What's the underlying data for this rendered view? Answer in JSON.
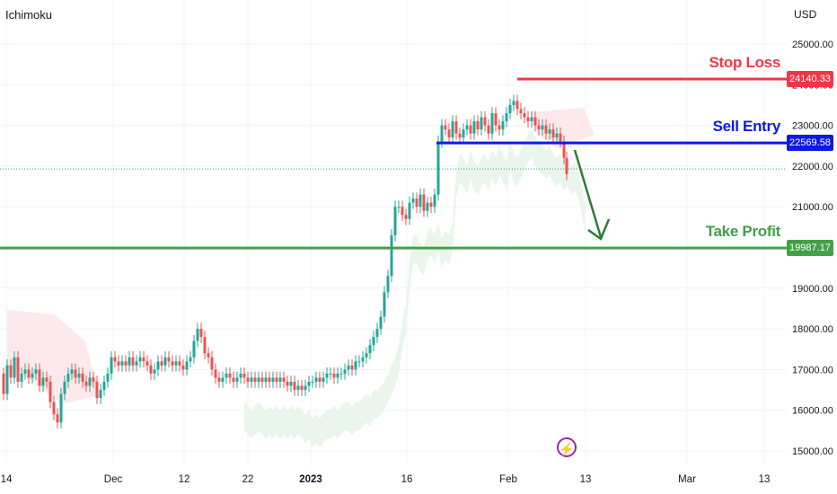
{
  "header": {
    "indicator": "Ichimoku",
    "currency": "USD"
  },
  "levels": {
    "stop_loss": {
      "label": "Stop Loss",
      "value_label": "24140.33",
      "value": 24140.33,
      "color": "#f23645"
    },
    "sell_entry": {
      "label": "Sell Entry",
      "value_label": "22569.58",
      "value": 22569.58,
      "color": "#0d19e6"
    },
    "take_profit": {
      "label": "Take Profit",
      "value_label": "19987.17",
      "value": 19987.17,
      "color": "#43a047"
    }
  },
  "chart_data": {
    "type": "candlestick",
    "y_axis_labels": [
      "25000.00",
      "24000.00",
      "23000.00",
      "22000.00",
      "21000.00",
      "20000.00",
      "19000.00",
      "18000.00",
      "17000.00",
      "16000.00",
      "15000.00"
    ],
    "x_axis_labels": [
      "14",
      "Dec",
      "12",
      "22",
      "2023",
      "16",
      "Feb",
      "13",
      "Mar",
      "13"
    ],
    "bold_x_label": "2023",
    "ylim": [
      15000,
      25000
    ],
    "current_price_line": 21930,
    "arrow": {
      "direction": "down",
      "color": "#2e7d32"
    },
    "series": [
      {
        "name": "",
        "close_path": [
          [
            0,
            16900
          ],
          [
            4,
            16400
          ],
          [
            8,
            17100
          ],
          [
            12,
            16800
          ],
          [
            16,
            17300
          ],
          [
            20,
            16700
          ],
          [
            24,
            16900
          ],
          [
            28,
            17000
          ],
          [
            32,
            16800
          ],
          [
            36,
            16900
          ],
          [
            40,
            17000
          ],
          [
            44,
            16600
          ],
          [
            48,
            16800
          ],
          [
            52,
            16700
          ],
          [
            56,
            16200
          ],
          [
            60,
            15900
          ],
          [
            64,
            15700
          ],
          [
            68,
            16400
          ],
          [
            72,
            16700
          ],
          [
            76,
            16900
          ],
          [
            80,
            17000
          ],
          [
            84,
            16800
          ],
          [
            88,
            16900
          ],
          [
            92,
            16700
          ],
          [
            96,
            16600
          ],
          [
            100,
            16800
          ],
          [
            104,
            16700
          ],
          [
            108,
            16300
          ],
          [
            112,
            16500
          ],
          [
            116,
            16700
          ],
          [
            120,
            16900
          ],
          [
            124,
            17300
          ],
          [
            128,
            17200
          ],
          [
            132,
            17100
          ],
          [
            136,
            17200
          ],
          [
            140,
            17100
          ],
          [
            144,
            17300
          ],
          [
            148,
            17100
          ],
          [
            152,
            17200
          ],
          [
            156,
            17300
          ],
          [
            160,
            17200
          ],
          [
            164,
            17100
          ],
          [
            168,
            16900
          ],
          [
            172,
            17000
          ],
          [
            176,
            17200
          ],
          [
            180,
            17100
          ],
          [
            184,
            17300
          ],
          [
            188,
            17200
          ],
          [
            192,
            17100
          ],
          [
            196,
            17200
          ],
          [
            200,
            17100
          ],
          [
            204,
            17000
          ],
          [
            208,
            17200
          ],
          [
            212,
            17300
          ],
          [
            216,
            17700
          ],
          [
            220,
            18000
          ],
          [
            224,
            17800
          ],
          [
            228,
            17400
          ],
          [
            232,
            17300
          ],
          [
            236,
            17000
          ],
          [
            240,
            16800
          ],
          [
            244,
            16700
          ],
          [
            248,
            16800
          ],
          [
            252,
            16900
          ],
          [
            256,
            16800
          ],
          [
            260,
            16700
          ],
          [
            264,
            16800
          ],
          [
            268,
            16900
          ],
          [
            272,
            16800
          ],
          [
            276,
            16700
          ],
          [
            280,
            16800
          ],
          [
            284,
            16700
          ],
          [
            288,
            16800
          ],
          [
            292,
            16700
          ],
          [
            296,
            16800
          ],
          [
            300,
            16700
          ],
          [
            304,
            16800
          ],
          [
            308,
            16700
          ],
          [
            312,
            16800
          ],
          [
            316,
            16700
          ],
          [
            320,
            16600
          ],
          [
            324,
            16700
          ],
          [
            328,
            16500
          ],
          [
            332,
            16600
          ],
          [
            336,
            16500
          ],
          [
            340,
            16600
          ],
          [
            344,
            16700
          ],
          [
            348,
            16700
          ],
          [
            352,
            16800
          ],
          [
            356,
            16700
          ],
          [
            360,
            16800
          ],
          [
            364,
            16900
          ],
          [
            368,
            16900
          ],
          [
            372,
            16800
          ],
          [
            376,
            16900
          ],
          [
            380,
            16900
          ],
          [
            384,
            17000
          ],
          [
            388,
            17100
          ],
          [
            392,
            17000
          ],
          [
            396,
            17200
          ],
          [
            400,
            17200
          ],
          [
            404,
            17300
          ],
          [
            408,
            17400
          ],
          [
            412,
            17600
          ],
          [
            416,
            17800
          ],
          [
            420,
            18000
          ],
          [
            424,
            18300
          ],
          [
            428,
            18900
          ],
          [
            432,
            19300
          ],
          [
            436,
            20300
          ],
          [
            440,
            21000
          ],
          [
            444,
            21000
          ],
          [
            448,
            20800
          ],
          [
            452,
            20700
          ],
          [
            456,
            21100
          ],
          [
            460,
            21200
          ],
          [
            464,
            21000
          ],
          [
            468,
            21300
          ],
          [
            472,
            20900
          ],
          [
            476,
            21100
          ],
          [
            480,
            21000
          ],
          [
            484,
            21300
          ],
          [
            488,
            22600
          ],
          [
            492,
            23000
          ],
          [
            496,
            22900
          ],
          [
            500,
            22700
          ],
          [
            504,
            23100
          ],
          [
            508,
            22800
          ],
          [
            512,
            22700
          ],
          [
            516,
            22900
          ],
          [
            520,
            23000
          ],
          [
            524,
            22800
          ],
          [
            528,
            23100
          ],
          [
            532,
            22900
          ],
          [
            536,
            23200
          ],
          [
            540,
            23000
          ],
          [
            544,
            22800
          ],
          [
            548,
            23300
          ],
          [
            552,
            23000
          ],
          [
            556,
            22900
          ],
          [
            560,
            23100
          ],
          [
            564,
            23300
          ],
          [
            568,
            23500
          ],
          [
            572,
            23600
          ],
          [
            576,
            23400
          ],
          [
            580,
            23300
          ],
          [
            584,
            23200
          ],
          [
            588,
            23100
          ],
          [
            592,
            23200
          ],
          [
            596,
            23000
          ],
          [
            600,
            22900
          ],
          [
            604,
            23000
          ],
          [
            608,
            22800
          ],
          [
            612,
            22900
          ],
          [
            616,
            22700
          ],
          [
            620,
            22800
          ],
          [
            624,
            22600
          ],
          [
            628,
            22200
          ],
          [
            631,
            21800
          ]
        ]
      }
    ]
  }
}
